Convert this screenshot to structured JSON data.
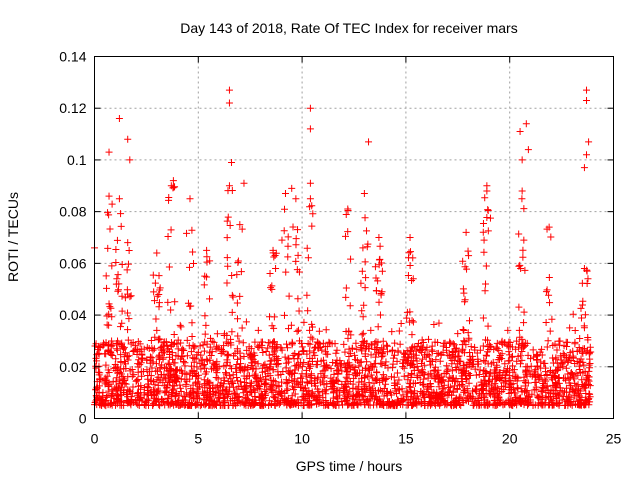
{
  "chart_data": {
    "type": "scatter",
    "title": "Day 143 of 2018, Rate Of TEC Index for receiver mars",
    "xlabel": "GPS time / hours",
    "ylabel": "ROTI / TECUs",
    "xlim": [
      0,
      25
    ],
    "ylim": [
      0,
      0.14
    ],
    "xticks": [
      0,
      5,
      10,
      15,
      20,
      25
    ],
    "xtick_labels": [
      "0",
      "5",
      "10",
      "15",
      "20",
      "25"
    ],
    "yticks": [
      0,
      0.02,
      0.04,
      0.06,
      0.08,
      0.1,
      0.12,
      0.14
    ],
    "ytick_labels": [
      "0",
      "0.02",
      "0.04",
      "0.06",
      "0.08",
      "0.1",
      "0.12",
      "0.14"
    ],
    "grid": true,
    "marker": "plus",
    "color": "#ff0000",
    "time_range_hours": [
      0,
      23.9
    ],
    "baseline_band": [
      0.005,
      0.03
    ],
    "notable_points": [
      {
        "x": 0.0,
        "y": 0.066
      },
      {
        "x": 0.7,
        "y": 0.103
      },
      {
        "x": 1.2,
        "y": 0.116
      },
      {
        "x": 1.6,
        "y": 0.108
      },
      {
        "x": 1.7,
        "y": 0.1
      },
      {
        "x": 3.8,
        "y": 0.092
      },
      {
        "x": 6.5,
        "y": 0.127
      },
      {
        "x": 6.5,
        "y": 0.122
      },
      {
        "x": 6.6,
        "y": 0.099
      },
      {
        "x": 7.2,
        "y": 0.091
      },
      {
        "x": 9.5,
        "y": 0.089
      },
      {
        "x": 10.4,
        "y": 0.12
      },
      {
        "x": 10.4,
        "y": 0.112
      },
      {
        "x": 10.4,
        "y": 0.091
      },
      {
        "x": 13.2,
        "y": 0.107
      },
      {
        "x": 18.9,
        "y": 0.09
      },
      {
        "x": 20.5,
        "y": 0.111
      },
      {
        "x": 20.8,
        "y": 0.114
      },
      {
        "x": 20.6,
        "y": 0.1
      },
      {
        "x": 20.9,
        "y": 0.104
      },
      {
        "x": 23.7,
        "y": 0.127
      },
      {
        "x": 23.7,
        "y": 0.123
      },
      {
        "x": 23.8,
        "y": 0.107
      },
      {
        "x": 23.7,
        "y": 0.102
      },
      {
        "x": 23.6,
        "y": 0.097
      }
    ],
    "spike_columns": [
      {
        "x": 0.7,
        "y_max": 0.086
      },
      {
        "x": 1.2,
        "y_max": 0.085
      },
      {
        "x": 1.6,
        "y_max": 0.068
      },
      {
        "x": 3.0,
        "y_max": 0.064
      },
      {
        "x": 3.7,
        "y_max": 0.09
      },
      {
        "x": 4.6,
        "y_max": 0.085
      },
      {
        "x": 5.4,
        "y_max": 0.065
      },
      {
        "x": 6.5,
        "y_max": 0.09
      },
      {
        "x": 7.0,
        "y_max": 0.075
      },
      {
        "x": 8.6,
        "y_max": 0.065
      },
      {
        "x": 9.2,
        "y_max": 0.087
      },
      {
        "x": 9.7,
        "y_max": 0.085
      },
      {
        "x": 10.4,
        "y_max": 0.085
      },
      {
        "x": 12.2,
        "y_max": 0.081
      },
      {
        "x": 13.0,
        "y_max": 0.087
      },
      {
        "x": 13.7,
        "y_max": 0.07
      },
      {
        "x": 15.2,
        "y_max": 0.07
      },
      {
        "x": 17.9,
        "y_max": 0.072
      },
      {
        "x": 18.9,
        "y_max": 0.088
      },
      {
        "x": 20.6,
        "y_max": 0.088
      },
      {
        "x": 21.9,
        "y_max": 0.074
      },
      {
        "x": 23.6,
        "y_max": 0.058
      }
    ]
  }
}
